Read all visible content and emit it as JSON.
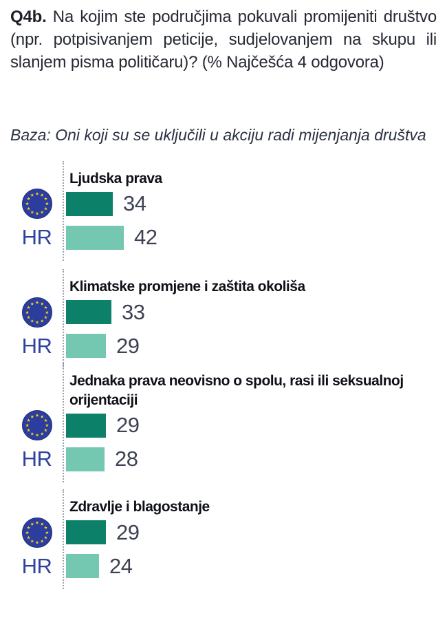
{
  "header": {
    "question_label": "Q4b.",
    "question_body": "Na kojim ste područjima pokuvali promijeniti društvo (npr. potpisivanjem peticije, sudjelovanjem na skupu ili slanjem pisma političaru)? (% Najčešća 4 odgovora)"
  },
  "base_note": "Baza: Oni koji su se uključili u akciju radi mijenjanja društva",
  "colors": {
    "eu_bar": "#0d8069",
    "hr_bar": "#74c7b0",
    "hr_label": "#2e429f",
    "flag_blue": "#2b3d9d",
    "flag_ring": "#1e2f80",
    "flag_star": "#f6d017",
    "dotted_line": "#9aa0a6"
  },
  "chart_data": {
    "type": "bar",
    "orientation": "horizontal",
    "unit": "%",
    "grid": false,
    "value_labels": true,
    "xlim": [
      0,
      100
    ],
    "categories": [
      "Ljudska prava",
      "Klimatske promjene i zaštita okoliša",
      "Jednaka prava neovisno o spolu, rasi ili seksualnoj\norijentaciji",
      "Zdravlje i blagostanje"
    ],
    "series": [
      {
        "name": "EU",
        "legend": "eu-flag",
        "values": [
          34,
          33,
          29,
          29
        ]
      },
      {
        "name": "HR",
        "legend": "HR",
        "values": [
          42,
          29,
          28,
          24
        ]
      }
    ]
  }
}
